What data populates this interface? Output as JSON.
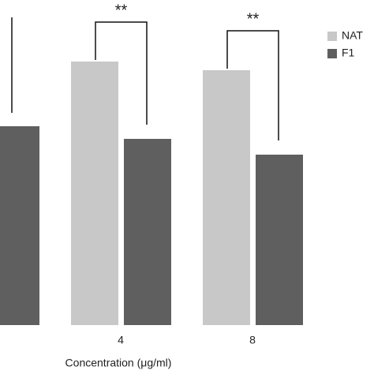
{
  "chart_data": {
    "type": "bar",
    "categories": [
      null,
      "4",
      "8"
    ],
    "series": [
      {
        "name": "NAT",
        "color": "#c8c8c8",
        "values": [
          null,
          83.5,
          80.75
        ]
      },
      {
        "name": "F1",
        "color": "#5f5f5f",
        "values": [
          63,
          59,
          54
        ]
      }
    ],
    "ylim": [
      0,
      100
    ],
    "x_label": "Concentration (μg/ml)",
    "annotations": [
      "**",
      "**"
    ]
  }
}
